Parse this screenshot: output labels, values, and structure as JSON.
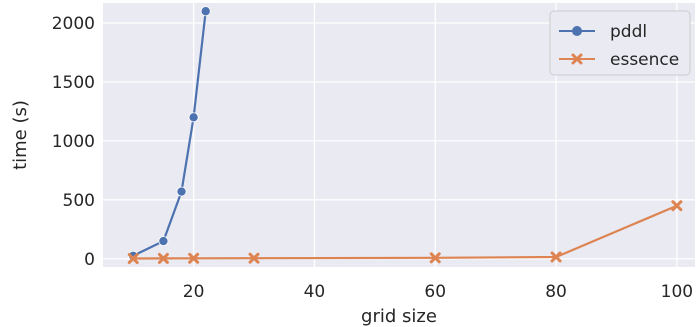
{
  "chart_data": {
    "type": "line",
    "xlabel": "grid size",
    "ylabel": "time (s)",
    "xlim": [
      5,
      103
    ],
    "ylim": [
      -70,
      2170
    ],
    "grid": true,
    "legend_position": "top-right",
    "x_ticks": [
      20,
      40,
      60,
      80,
      100
    ],
    "y_ticks": [
      0,
      500,
      1000,
      1500,
      2000
    ],
    "series": [
      {
        "name": "pddl",
        "color": "#4c72b0",
        "marker": "circle",
        "x": [
          10,
          15,
          18,
          20,
          22
        ],
        "y": [
          25,
          150,
          570,
          1200,
          2100
        ]
      },
      {
        "name": "essence",
        "color": "#dd8452",
        "marker": "x",
        "x": [
          10,
          15,
          20,
          30,
          60,
          80,
          100
        ],
        "y": [
          2,
          3,
          4,
          5,
          8,
          15,
          450
        ]
      }
    ]
  }
}
